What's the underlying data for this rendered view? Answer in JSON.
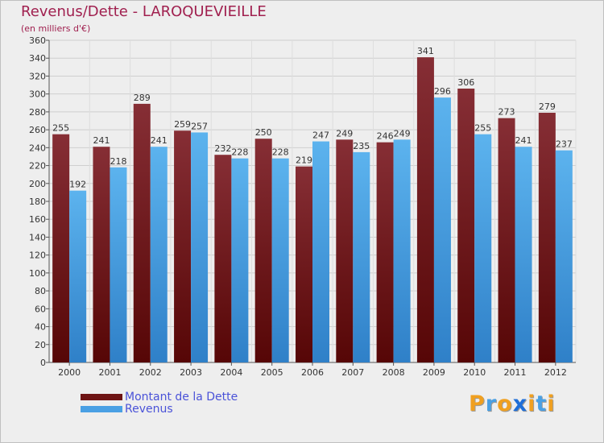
{
  "chart_data": {
    "type": "bar",
    "title": "Revenus/Dette - LAROQUEVIEILLE",
    "subtitle": "(en milliers d'€)",
    "categories": [
      "2000",
      "2001",
      "2002",
      "2003",
      "2004",
      "2005",
      "2006",
      "2007",
      "2008",
      "2009",
      "2010",
      "2011",
      "2012"
    ],
    "series": [
      {
        "name": "Montant de la Dette",
        "color": "#6e1414",
        "values": [
          255,
          241,
          289,
          259,
          232,
          250,
          219,
          249,
          246,
          341,
          306,
          273,
          279
        ]
      },
      {
        "name": "Revenus",
        "color": "#4aa0e4",
        "values": [
          192,
          218,
          241,
          257,
          228,
          228,
          247,
          235,
          249,
          296,
          255,
          241,
          237
        ]
      }
    ],
    "ylim": [
      0,
      360
    ],
    "ytick_step": 20,
    "grid": true,
    "legend_position": "bottom-left"
  },
  "branding": {
    "logo_letters": [
      "P",
      "r",
      "o",
      "x",
      "i",
      "t",
      "i"
    ],
    "logo_colors": [
      "#f0a020",
      "#4aa0e4",
      "#f0a020",
      "#1e6ed8",
      "#f0a020",
      "#4aa0e4",
      "#f0a020"
    ]
  }
}
